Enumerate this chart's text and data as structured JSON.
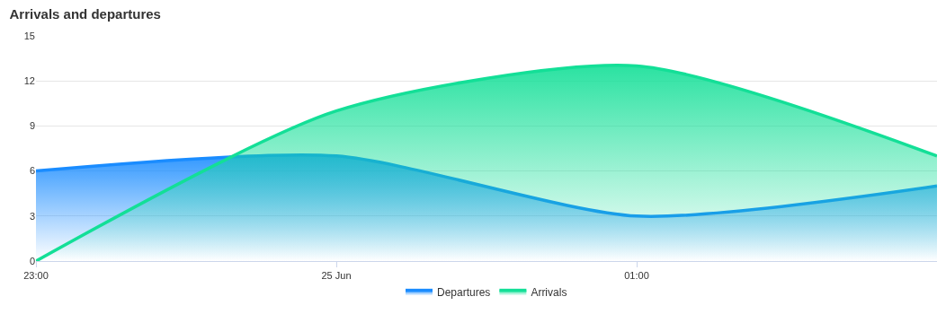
{
  "chart_data": {
    "type": "area",
    "title": "Arrivals and departures",
    "categories": [
      "23:00",
      "25 Jun",
      "01:00",
      null
    ],
    "series": [
      {
        "name": "Departures",
        "color": "#1a8cff",
        "values": [
          6,
          7,
          3,
          5
        ]
      },
      {
        "name": "Arrivals",
        "color": "#13df97",
        "values": [
          0,
          10,
          13,
          7
        ]
      }
    ],
    "ylim": [
      0,
      15
    ],
    "yticks": [
      0,
      3,
      6,
      9,
      12,
      15
    ],
    "grid": "y",
    "legend": "bottom",
    "marker": "none",
    "line_style": "solid"
  }
}
